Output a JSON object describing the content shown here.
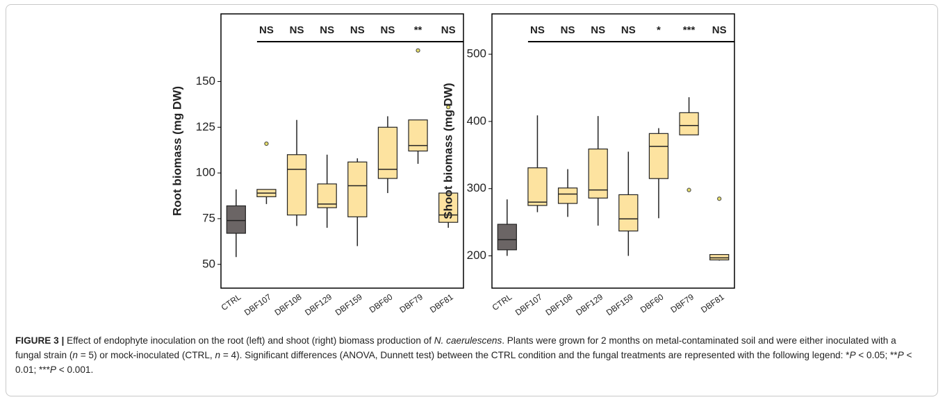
{
  "chart_data": [
    {
      "type": "box",
      "y_label": "Root biomass (mg DW)",
      "categories": [
        "CTRL",
        "DBF107",
        "DBF108",
        "DBF129",
        "DBF159",
        "DBF60",
        "DBF79",
        "DBF81"
      ],
      "whisker_low": [
        54,
        83,
        71,
        70,
        60,
        89,
        105,
        70
      ],
      "q1": [
        67,
        87,
        77,
        81,
        76,
        97,
        112,
        73
      ],
      "median": [
        74,
        89,
        102,
        83,
        93,
        102,
        115,
        77
      ],
      "q3": [
        82,
        91,
        110,
        94,
        106,
        125,
        129,
        89
      ],
      "whisker_high": [
        91,
        91,
        129,
        110,
        108,
        131,
        129,
        89
      ],
      "outliers": [
        [],
        [
          116
        ],
        [],
        [],
        [],
        [],
        [
          167
        ],
        [
          136
        ]
      ],
      "significance": [
        null,
        "NS",
        "NS",
        "NS",
        "NS",
        "NS",
        "**",
        "NS"
      ],
      "colors": [
        "#6b6565",
        "#fde3a0",
        "#fde3a0",
        "#fde3a0",
        "#fde3a0",
        "#fde3a0",
        "#fde3a0",
        "#fde3a0"
      ],
      "ylim": [
        37,
        187
      ],
      "yticks": [
        50,
        75,
        100,
        125,
        150
      ]
    },
    {
      "type": "box",
      "y_label": "Shoot biomass (mg DW)",
      "categories": [
        "CTRL",
        "DBF107",
        "DBF108",
        "DBF129",
        "DBF159",
        "DBF60",
        "DBF79",
        "DBF81"
      ],
      "whisker_low": [
        200,
        265,
        258,
        245,
        200,
        256,
        380,
        193
      ],
      "q1": [
        209,
        275,
        278,
        286,
        237,
        315,
        380,
        194
      ],
      "median": [
        224,
        280,
        292,
        298,
        255,
        363,
        394,
        197
      ],
      "q3": [
        247,
        331,
        301,
        359,
        291,
        382,
        413,
        202
      ],
      "whisker_high": [
        284,
        409,
        329,
        408,
        355,
        390,
        436,
        202
      ],
      "outliers": [
        [],
        [],
        [],
        [],
        [],
        [],
        [
          298
        ],
        [
          285
        ]
      ],
      "significance": [
        null,
        "NS",
        "NS",
        "NS",
        "NS",
        "*",
        "***",
        "NS"
      ],
      "colors": [
        "#6b6565",
        "#fde3a0",
        "#fde3a0",
        "#fde3a0",
        "#fde3a0",
        "#fde3a0",
        "#fde3a0",
        "#fde3a0"
      ],
      "ylim": [
        152,
        560
      ],
      "yticks": [
        200,
        300,
        400,
        500
      ]
    }
  ],
  "caption": {
    "label": "FIGURE 3 |",
    "parts": [
      " Effect of endophyte inoculation on the root (left) and shoot (right) biomass production of ",
      "N. caerulescens",
      ". Plants were grown for 2 months on metal-contaminated soil and were either inoculated with a fungal strain (",
      "n",
      " = 5) or mock-inoculated (CTRL, ",
      "n",
      " = 4). Significant differences (ANOVA, Dunnett test) between the CTRL condition and the fungal treatments are represented with the following legend: *",
      "P",
      " < 0.05; **",
      "P",
      " < 0.01; ***",
      "P",
      " < 0.001."
    ]
  }
}
